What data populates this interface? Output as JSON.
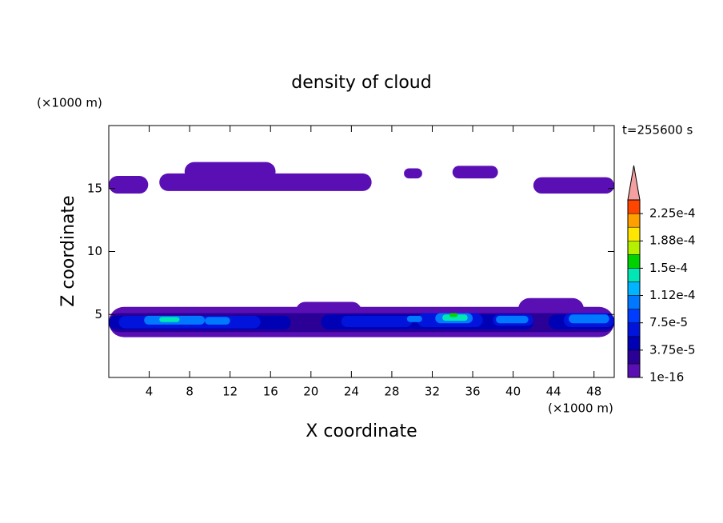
{
  "chart_data": {
    "type": "contour",
    "title": "density of cloud",
    "x_label": "X coordinate",
    "y_label": "Z coordinate",
    "x_unit": "(×1000 m)",
    "y_unit": "(×1000 m)",
    "annotation": "t=255600 s",
    "xlim": [
      0,
      50
    ],
    "ylim": [
      0,
      20
    ],
    "xticks": [
      4,
      8,
      12,
      16,
      20,
      24,
      28,
      32,
      36,
      40,
      44,
      48
    ],
    "yticks": [
      5,
      10,
      15
    ],
    "colorbar": {
      "clim": [
        1e-16,
        0.00024375
      ],
      "colors": [
        "#5a0fb4",
        "#2a0096",
        "#0000b4",
        "#0014dc",
        "#003cff",
        "#0078ff",
        "#00b4ff",
        "#00e6b4",
        "#00d200",
        "#b4f000",
        "#ffe600",
        "#ffa000",
        "#ff4600"
      ],
      "extend_color": "#f4a0a0",
      "ticks": [
        {
          "value": 1e-16,
          "label": "1e-16"
        },
        {
          "value": 3.75e-05,
          "label": "3.75e-5"
        },
        {
          "value": 7.5e-05,
          "label": "7.5e-5"
        },
        {
          "value": 0.0001125,
          "label": "1.12e-4"
        },
        {
          "value": 0.00015,
          "label": "1.5e-4"
        },
        {
          "value": 0.0001875,
          "label": "1.88e-4"
        },
        {
          "value": 0.000225,
          "label": "2.25e-4"
        }
      ]
    },
    "field": [
      {
        "level": 0,
        "x": [
          0,
          3.9
        ],
        "z": [
          14.6,
          16.0
        ]
      },
      {
        "level": 0,
        "x": [
          5,
          26
        ],
        "z": [
          14.8,
          16.2
        ]
      },
      {
        "level": 0,
        "x": [
          7.5,
          16.5
        ],
        "z": [
          15.6,
          17.1
        ]
      },
      {
        "level": 0,
        "x": [
          29.2,
          31
        ],
        "z": [
          15.8,
          16.6
        ]
      },
      {
        "level": 0,
        "x": [
          34,
          38.5
        ],
        "z": [
          15.8,
          16.8
        ]
      },
      {
        "level": 0,
        "x": [
          42,
          50
        ],
        "z": [
          14.6,
          15.9
        ]
      },
      {
        "level": 0,
        "x": [
          0,
          50
        ],
        "z": [
          3.2,
          5.6
        ]
      },
      {
        "level": 0,
        "x": [
          40.5,
          47
        ],
        "z": [
          4.5,
          6.3
        ]
      },
      {
        "level": 0,
        "x": [
          18.5,
          25
        ],
        "z": [
          4.5,
          6.0
        ]
      },
      {
        "level": 1,
        "x": [
          0,
          50
        ],
        "z": [
          3.6,
          5.1
        ]
      },
      {
        "level": 2,
        "x": [
          0,
          18
        ],
        "z": [
          3.8,
          4.9
        ]
      },
      {
        "level": 2,
        "x": [
          21,
          42
        ],
        "z": [
          3.8,
          5.0
        ]
      },
      {
        "level": 2,
        "x": [
          43.5,
          50
        ],
        "z": [
          3.8,
          5.0
        ]
      },
      {
        "level": 3,
        "x": [
          1,
          15
        ],
        "z": [
          3.9,
          4.9
        ]
      },
      {
        "level": 3,
        "x": [
          23,
          30
        ],
        "z": [
          4.0,
          4.9
        ]
      },
      {
        "level": 3,
        "x": [
          30.5,
          37
        ],
        "z": [
          4.0,
          5.1
        ]
      },
      {
        "level": 3,
        "x": [
          38,
          42
        ],
        "z": [
          4.1,
          5.0
        ]
      },
      {
        "level": 3,
        "x": [
          45,
          50
        ],
        "z": [
          4.0,
          5.1
        ]
      },
      {
        "level": 5,
        "x": [
          3.5,
          9.5
        ],
        "z": [
          4.2,
          4.9
        ]
      },
      {
        "level": 5,
        "x": [
          9.5,
          12
        ],
        "z": [
          4.2,
          4.8
        ]
      },
      {
        "level": 5,
        "x": [
          29.5,
          31
        ],
        "z": [
          4.4,
          4.9
        ]
      },
      {
        "level": 5,
        "x": [
          32.3,
          36
        ],
        "z": [
          4.3,
          5.1
        ]
      },
      {
        "level": 5,
        "x": [
          38.3,
          41.5
        ],
        "z": [
          4.3,
          4.9
        ]
      },
      {
        "level": 5,
        "x": [
          45.5,
          49.5
        ],
        "z": [
          4.3,
          5.0
        ]
      },
      {
        "level": 7,
        "x": [
          5,
          7
        ],
        "z": [
          4.4,
          4.8
        ]
      },
      {
        "level": 7,
        "x": [
          33,
          35.5
        ],
        "z": [
          4.5,
          5.0
        ]
      },
      {
        "level": 8,
        "x": [
          33.7,
          34.5
        ],
        "z": [
          4.8,
          5.1
        ]
      }
    ]
  }
}
